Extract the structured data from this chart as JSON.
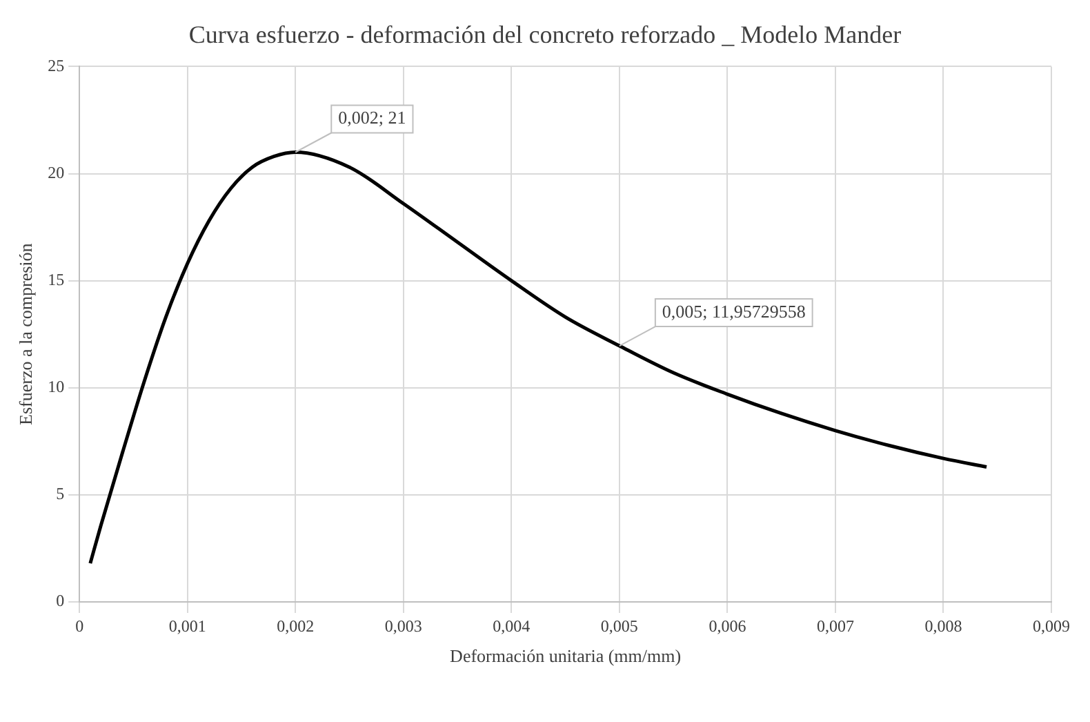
{
  "chart_data": {
    "type": "line",
    "title": "Curva esfuerzo - deformación del concreto reforzado _ Modelo Mander",
    "xlabel": "Deformación unitaria (mm/mm)",
    "ylabel": "Esfuerzo a la compresión",
    "x": [
      0.0001,
      0.0002,
      0.0004,
      0.0006,
      0.0008,
      0.001,
      0.0012,
      0.0014,
      0.0016,
      0.0018,
      0.002,
      0.0025,
      0.003,
      0.0035,
      0.004,
      0.0045,
      0.005,
      0.0055,
      0.006,
      0.0065,
      0.007,
      0.0075,
      0.008,
      0.0084
    ],
    "series": [
      {
        "color": "#000000",
        "values": [
          1.8,
          3.6,
          7.0,
          10.3,
          13.3,
          15.8,
          17.8,
          19.3,
          20.3,
          20.8,
          21,
          20.3,
          18.6,
          16.8,
          15.0,
          13.3,
          11.95729558,
          10.7,
          9.7,
          8.8,
          8.0,
          7.3,
          6.7,
          6.3
        ]
      }
    ],
    "xlim": [
      0,
      0.009
    ],
    "xticks": [
      {
        "value": 0,
        "label": "0"
      },
      {
        "value": 0.001,
        "label": "0,001"
      },
      {
        "value": 0.002,
        "label": "0,002"
      },
      {
        "value": 0.003,
        "label": "0,003"
      },
      {
        "value": 0.004,
        "label": "0,004"
      },
      {
        "value": 0.005,
        "label": "0,005"
      },
      {
        "value": 0.006,
        "label": "0,006"
      },
      {
        "value": 0.007,
        "label": "0,007"
      },
      {
        "value": 0.008,
        "label": "0,008"
      },
      {
        "value": 0.009,
        "label": "0,009"
      }
    ],
    "ylim": [
      0,
      25
    ],
    "yticks": [
      0,
      5,
      10,
      15,
      20,
      25
    ],
    "annotations": [
      {
        "text": "0,002; 21",
        "x": 0.002,
        "y": 21
      },
      {
        "text": "0,005; 11,95729558",
        "x": 0.005,
        "y": 11.95729558
      }
    ],
    "grid": true,
    "legend": false,
    "marker": "none",
    "line_style": "solid"
  }
}
